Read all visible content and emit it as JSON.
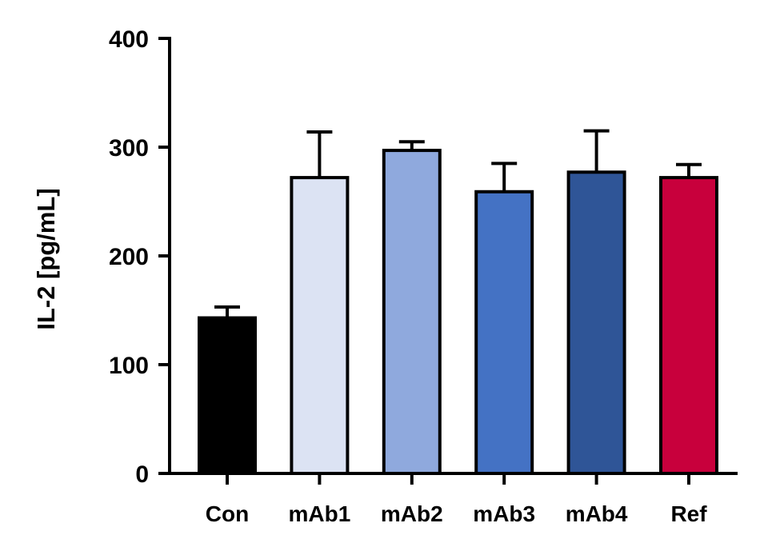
{
  "chart_data": {
    "type": "bar",
    "ylabel": "IL-2 [pg/mL]",
    "ylim": [
      0,
      400
    ],
    "yticks": [
      "0",
      "100",
      "200",
      "300",
      "400"
    ],
    "categories": [
      "Con",
      "mAb1",
      "mAb2",
      "mAb3",
      "mAb4",
      "Ref"
    ],
    "values": [
      143,
      272,
      297,
      259,
      277,
      272
    ],
    "error_upper": [
      10,
      42,
      8,
      26,
      38,
      12
    ],
    "colors": [
      "#000000",
      "#dce3f3",
      "#8fa9dd",
      "#4472c4",
      "#2f5597",
      "#c8003c"
    ],
    "grid": false,
    "legend": "none"
  }
}
